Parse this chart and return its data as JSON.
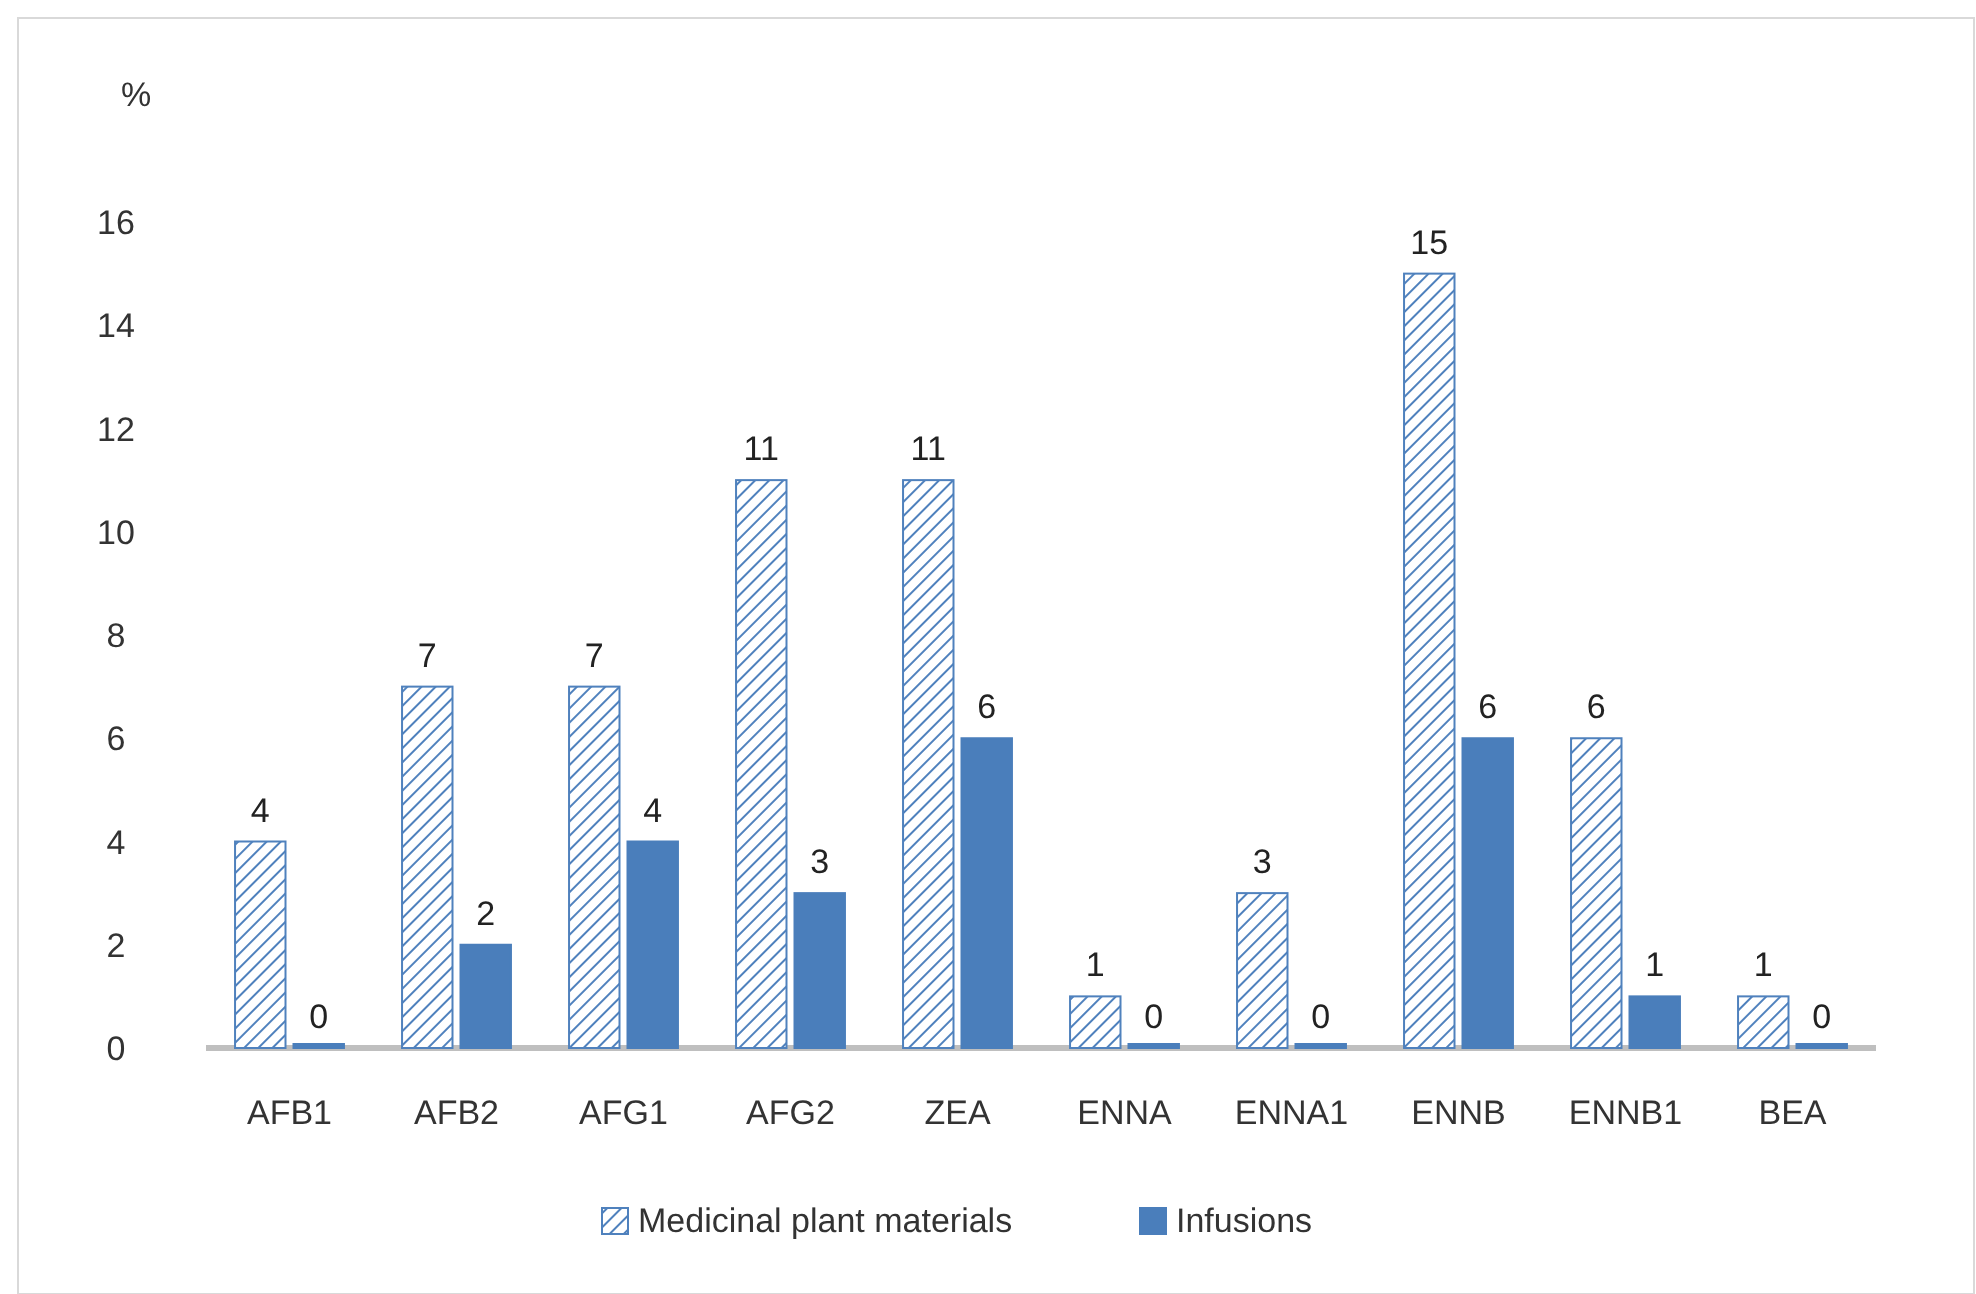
{
  "chart_data": {
    "type": "bar",
    "ylabel": "%",
    "categories": [
      "AFB1",
      "AFB2",
      "AFG1",
      "AFG2",
      "ZEA",
      "ENNA",
      "ENNA1",
      "ENNB",
      "ENNB1",
      "BEA"
    ],
    "series": [
      {
        "name": "Medicinal plant materials",
        "color": "#4f81bd",
        "values": [
          4,
          7,
          7,
          11,
          11,
          1,
          3,
          15,
          6,
          1
        ]
      },
      {
        "name": "Infusions",
        "color": "#4a7ebb",
        "values": [
          0,
          2,
          4,
          3,
          6,
          0,
          0,
          6,
          1,
          0
        ]
      }
    ],
    "ylim": [
      0,
      16
    ],
    "yticks": [
      0,
      2,
      4,
      6,
      8,
      10,
      12,
      14,
      16
    ],
    "grid": false,
    "legend": "bottom",
    "data_labels": true
  }
}
